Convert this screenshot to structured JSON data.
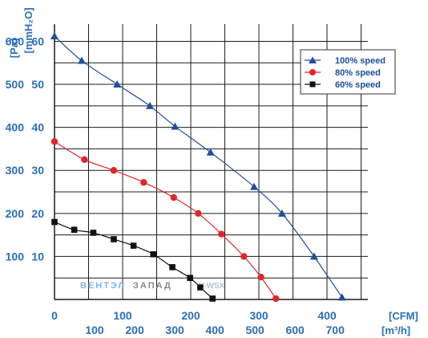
{
  "chart_data": {
    "type": "line",
    "y_units": [
      "[Pa]",
      "[mmH₂O]"
    ],
    "x_units": [
      "[CFM]",
      "[m³/h]"
    ],
    "y_ticks_pa": [
      100,
      200,
      300,
      400,
      500,
      600
    ],
    "y_ticks_mmh2o": [
      10,
      20,
      30,
      40,
      50,
      60
    ],
    "x_ticks_cfm": [
      0,
      100,
      200,
      300,
      400
    ],
    "x_ticks_m3h": [
      100,
      200,
      300,
      400,
      500,
      600,
      700
    ],
    "xlim_cfm": [
      0,
      460
    ],
    "ylim_pa": [
      0,
      640
    ],
    "grid": true,
    "legend_position": "top-right",
    "series": [
      {
        "name": "100%  speed",
        "color": "#1f4e9c",
        "marker": "triangle",
        "x": [
          0,
          40,
          92,
          140,
          177,
          229,
          293,
          334,
          381,
          422
        ],
        "y": [
          612,
          555,
          500,
          450,
          402,
          342,
          262,
          200,
          100,
          5
        ]
      },
      {
        "name": "80%  speed",
        "color": "#e0262b",
        "marker": "circle",
        "x": [
          0,
          44,
          87,
          131,
          175,
          211,
          245,
          278,
          303,
          325
        ],
        "y": [
          367,
          325,
          300,
          272,
          237,
          200,
          152,
          100,
          52,
          2
        ]
      },
      {
        "name": "60%  speed",
        "color": "#111111",
        "marker": "square",
        "x": [
          0,
          29,
          57,
          87,
          116,
          145,
          173,
          199,
          214,
          232
        ],
        "y": [
          180,
          162,
          155,
          140,
          125,
          105,
          75,
          50,
          28,
          2
        ]
      }
    ]
  },
  "watermark": {
    "part1": "ВЕНТЭЛ",
    "part2": "ЗАПАД",
    "part3": "V-WSX"
  }
}
